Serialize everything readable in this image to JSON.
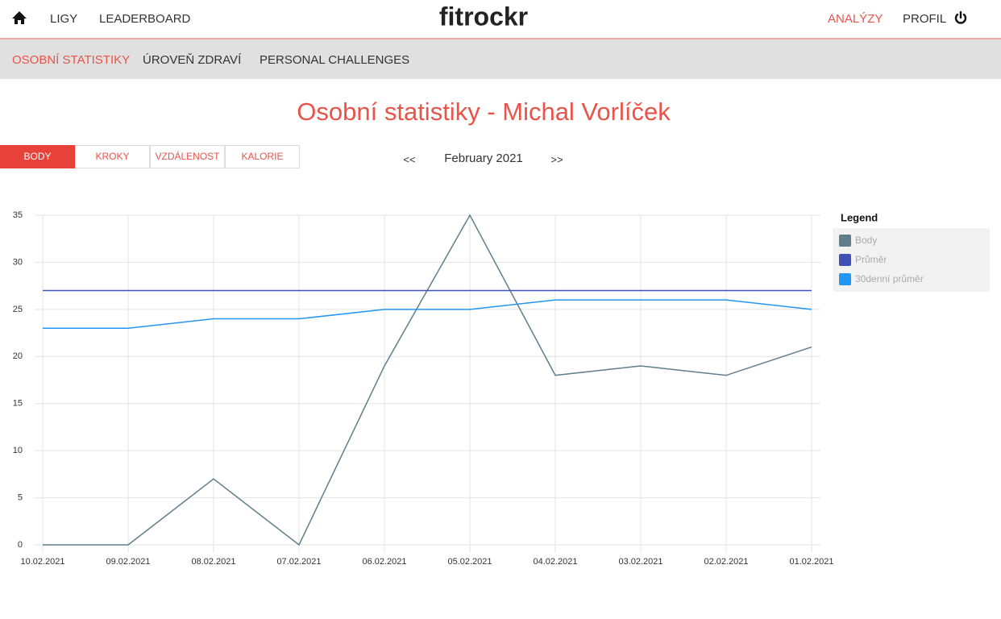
{
  "nav": {
    "left": [
      "LIGY",
      "LEADERBOARD"
    ],
    "logo": "fitrockr",
    "right": [
      "ANALÝZY",
      "PROFIL"
    ]
  },
  "subnav": [
    "OSOBNÍ STATISTIKY",
    "ÚROVEŇ ZDRAVÍ",
    "PERSONAL CHALLENGES"
  ],
  "heading": "Osobní statistiky - Michal Vorlíček",
  "tabs": [
    "BODY",
    "KROKY",
    "VZDÁLENOST",
    "KALORIE"
  ],
  "period": {
    "prev": "<<",
    "label": "February 2021",
    "next": ">>"
  },
  "chart_data": {
    "type": "line",
    "categories": [
      "10.02.2021",
      "09.02.2021",
      "08.02.2021",
      "07.02.2021",
      "06.02.2021",
      "05.02.2021",
      "04.02.2021",
      "03.02.2021",
      "02.02.2021",
      "01.02.2021"
    ],
    "series": [
      {
        "name": "Body",
        "color": "#607d8b",
        "values": [
          0,
          0,
          7,
          0,
          19,
          35,
          18,
          19,
          18,
          21
        ]
      },
      {
        "name": "Průměr",
        "color": "#3f51b5",
        "values": [
          27,
          27,
          27,
          27,
          27,
          27,
          27,
          27,
          27,
          27
        ]
      },
      {
        "name": "30denní průměr",
        "color": "#2196f3",
        "values": [
          23,
          23,
          24,
          24,
          25,
          25,
          26,
          26,
          26,
          25
        ]
      }
    ],
    "ylim": [
      0,
      35
    ],
    "yticks": [
      0,
      5,
      10,
      15,
      20,
      25,
      30,
      35
    ],
    "grid": true,
    "legend_title": "Legend",
    "legend_position": "right"
  }
}
